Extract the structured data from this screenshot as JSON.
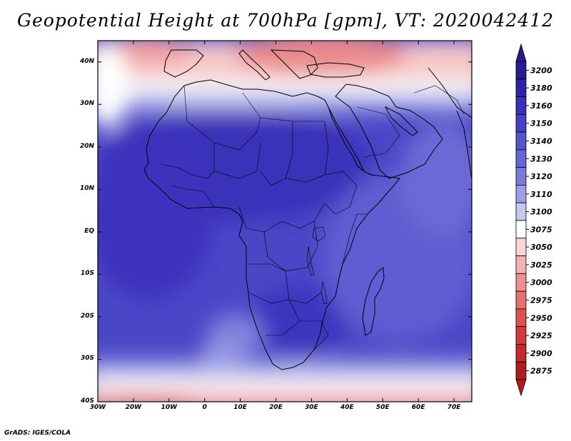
{
  "title": "Geopotential Height at 700hPa [gpm], VT: 2020042412",
  "credit": "GrADS: IGES/COLA",
  "lat_labels": [
    "40N",
    "30N",
    "20N",
    "10N",
    "EQ",
    "10S",
    "20S",
    "30S",
    "40S"
  ],
  "lon_labels": [
    "30W",
    "20W",
    "10W",
    "0",
    "10E",
    "20E",
    "30E",
    "40E",
    "50E",
    "60E",
    "70E"
  ],
  "colorbar": {
    "levels": [
      "3200",
      "3180",
      "3160",
      "3150",
      "3140",
      "3130",
      "3120",
      "3110",
      "3100",
      "3075",
      "3050",
      "3025",
      "3000",
      "2975",
      "2950",
      "2925",
      "2900",
      "2875"
    ],
    "colors": [
      "#2a1a90",
      "#3223a6",
      "#3a30b8",
      "#4540c4",
      "#5454cc",
      "#6566d4",
      "#7a7cdc",
      "#9c9ee6",
      "#c6c8f0",
      "#ffffff",
      "#fbd4d4",
      "#f6b0b0",
      "#ef8f8f",
      "#e86f6f",
      "#e05050",
      "#d43a3a",
      "#c42a2a",
      "#b01c1c"
    ]
  },
  "map": {
    "lat_range": [
      -40,
      45
    ],
    "lon_range": [
      -30,
      75
    ],
    "colors": {
      "deep": "#3a31ba",
      "mid": "#4b48c8",
      "light": "#6866d4",
      "pale": "#9c9ee6",
      "white": "#ffffff",
      "pink": "#f6c0c0",
      "red": "#e88080"
    }
  }
}
